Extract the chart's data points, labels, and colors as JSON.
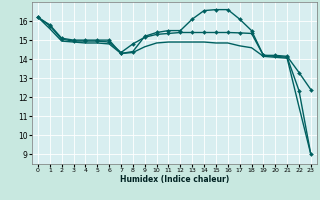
{
  "xlabel": "Humidex (Indice chaleur)",
  "ylabel": "",
  "background_color": "#c8e8e0",
  "plot_bg_color": "#d8eef0",
  "grid_color": "#ffffff",
  "line_color": "#006060",
  "x_ticks": [
    0,
    1,
    2,
    3,
    4,
    5,
    6,
    7,
    8,
    9,
    10,
    11,
    12,
    13,
    14,
    15,
    16,
    17,
    18,
    19,
    20,
    21,
    22,
    23
  ],
  "y_ticks": [
    9,
    10,
    11,
    12,
    13,
    14,
    15,
    16
  ],
  "ylim": [
    8.5,
    17.0
  ],
  "xlim": [
    -0.5,
    23.5
  ],
  "series": [
    {
      "x": [
        0,
        1,
        2,
        3,
        4,
        5,
        6,
        7,
        8,
        9,
        10,
        11,
        12,
        13,
        14,
        15,
        16,
        17,
        18,
        19,
        20,
        21,
        22,
        23
      ],
      "y": [
        16.2,
        15.8,
        15.1,
        15.0,
        15.0,
        15.0,
        15.0,
        14.3,
        14.4,
        15.2,
        15.4,
        15.5,
        15.5,
        16.1,
        16.55,
        16.6,
        16.6,
        16.1,
        15.5,
        14.2,
        14.2,
        14.15,
        13.3,
        12.4
      ],
      "marker": "D",
      "markersize": 2.0,
      "linewidth": 1.0,
      "has_markers": true
    },
    {
      "x": [
        0,
        1,
        2,
        3,
        4,
        5,
        6,
        7,
        8,
        9,
        10,
        11,
        12,
        13,
        14,
        15,
        16,
        17,
        18,
        19,
        20,
        21,
        22,
        23
      ],
      "y": [
        16.2,
        15.75,
        15.05,
        14.95,
        14.95,
        14.95,
        14.9,
        14.35,
        14.8,
        15.15,
        15.3,
        15.35,
        15.4,
        15.4,
        15.4,
        15.4,
        15.4,
        15.38,
        15.35,
        14.2,
        14.15,
        14.1,
        12.35,
        9.0
      ],
      "marker": "D",
      "markersize": 2.0,
      "linewidth": 1.0,
      "has_markers": true
    },
    {
      "x": [
        0,
        1,
        2,
        3,
        4,
        5,
        6,
        7,
        8,
        9,
        10,
        11,
        12,
        13,
        14,
        15,
        16,
        17,
        18,
        19,
        20,
        21,
        22,
        23
      ],
      "y": [
        16.2,
        15.6,
        14.95,
        14.9,
        14.85,
        14.85,
        14.8,
        14.3,
        14.35,
        14.65,
        14.85,
        14.9,
        14.9,
        14.9,
        14.9,
        14.85,
        14.85,
        14.7,
        14.6,
        14.15,
        14.1,
        14.05,
        11.5,
        9.0
      ],
      "marker": null,
      "markersize": 0,
      "linewidth": 1.0,
      "has_markers": false
    }
  ]
}
